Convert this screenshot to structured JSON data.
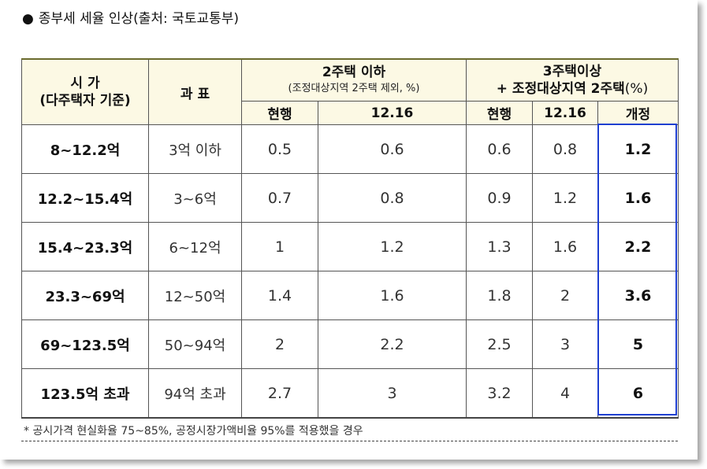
{
  "title": {
    "bullet": "●",
    "text": "종부세 세율 인상(출처: 국토교통부)"
  },
  "table": {
    "header": {
      "col_price_line1": "시 가",
      "col_price_line2": "(다주택자 기준)",
      "col_base": "과 표",
      "group1_title": "2주택 이하",
      "group1_sub": "(조정대상지역 2주택 제외, %)",
      "group2_line1": "3주택이상",
      "group2_line2": "+ 조정대상지역 2주택",
      "group2_pct": "(%)",
      "g1_current": "현행",
      "g1_new": "12.16",
      "g2_current": "현행",
      "g2_new": "12.16",
      "g2_revised": "개정"
    },
    "rows": [
      {
        "range": "8~12.2억",
        "base": "3억 이하",
        "g1_current": "0.5",
        "g1_new": "0.6",
        "g2_current": "0.6",
        "g2_new": "0.8",
        "revised": "1.2"
      },
      {
        "range": "12.2~15.4억",
        "base": "3~6억",
        "g1_current": "0.7",
        "g1_new": "0.8",
        "g2_current": "0.9",
        "g2_new": "1.2",
        "revised": "1.6"
      },
      {
        "range": "15.4~23.3억",
        "base": "6~12억",
        "g1_current": "1",
        "g1_new": "1.2",
        "g2_current": "1.3",
        "g2_new": "1.6",
        "revised": "2.2"
      },
      {
        "range": "23.3~69억",
        "base": "12~50억",
        "g1_current": "1.4",
        "g1_new": "1.6",
        "g2_current": "1.8",
        "g2_new": "2",
        "revised": "3.6"
      },
      {
        "range": "69~123.5억",
        "base": "50~94억",
        "g1_current": "2",
        "g1_new": "2.2",
        "g2_current": "2.5",
        "g2_new": "3",
        "revised": "5"
      },
      {
        "range": "123.5억 초과",
        "base": "94억 초과",
        "g1_current": "2.7",
        "g1_new": "3",
        "g2_current": "3.2",
        "g2_new": "4",
        "revised": "6"
      }
    ]
  },
  "note": "* 공시가격 현실화율 75~85%, 공정시장가액비율 95%를 적용했을 경우",
  "colors": {
    "header_bg": "#fcf9e4",
    "highlight_border": "#1f3fd0"
  }
}
